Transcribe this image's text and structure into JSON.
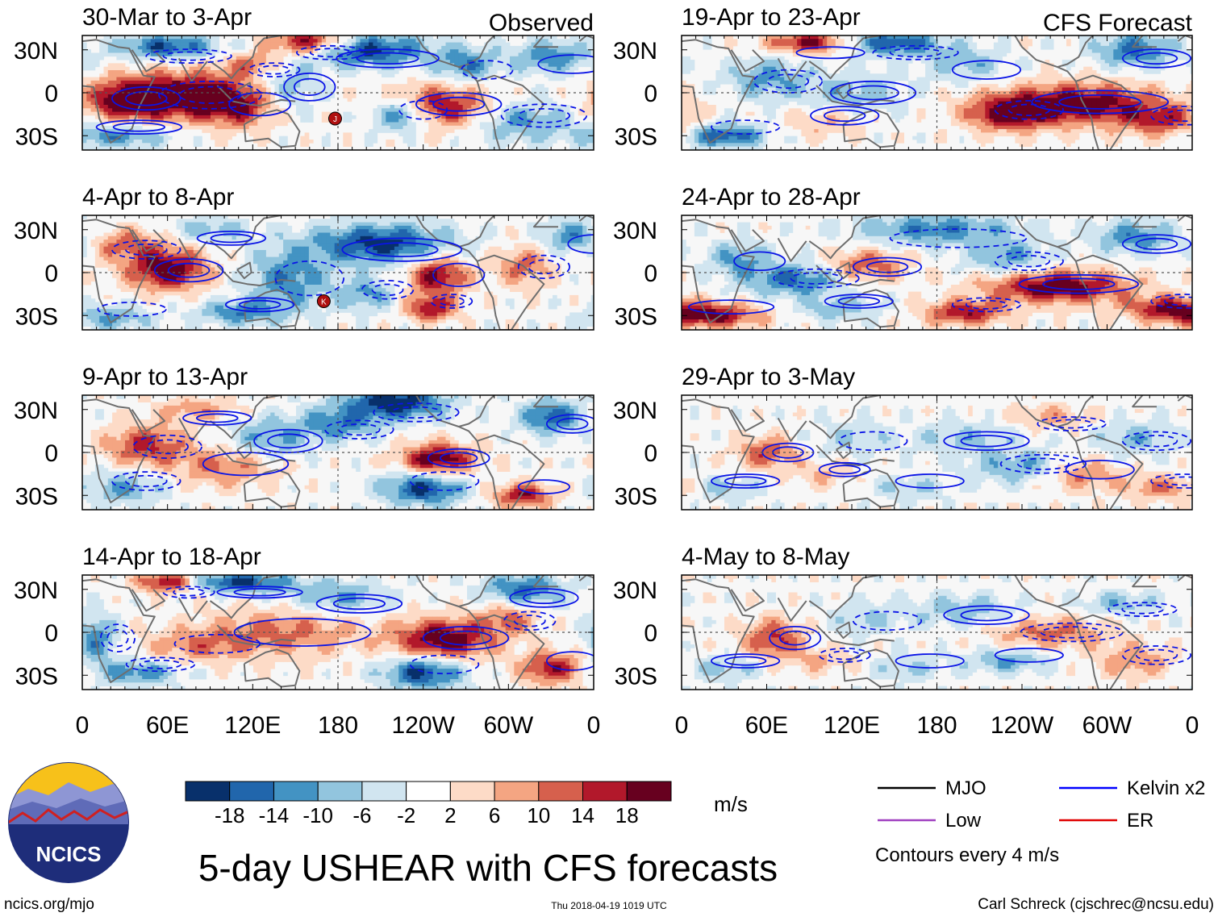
{
  "chart_data": {
    "type": "heatmap",
    "title": "5-day USHEAR with CFS forecasts",
    "variable": "USHEAR",
    "units": "m/s",
    "observed_label": "Observed",
    "forecast_label": "CFS Forecast",
    "x_ticks": [
      "0",
      "60E",
      "120E",
      "180",
      "120W",
      "60W",
      "0"
    ],
    "x_tick_values": [
      0,
      60,
      120,
      180,
      240,
      300,
      360
    ],
    "xlim": [
      0,
      360
    ],
    "y_ticks": [
      "30N",
      "0",
      "30S"
    ],
    "y_tick_values": [
      30,
      0,
      -30
    ],
    "ylim": [
      -40,
      40
    ],
    "colorbar": {
      "labels": [
        "-18",
        "-14",
        "-10",
        "-6",
        "-2",
        "2",
        "6",
        "10",
        "14",
        "18"
      ],
      "levels": [
        -18,
        -14,
        -10,
        -6,
        -2,
        2,
        6,
        10,
        14,
        18
      ],
      "colors": [
        "#08306b",
        "#2166ac",
        "#4393c3",
        "#92c5de",
        "#d1e5f0",
        "#ffffff",
        "#fddbc7",
        "#f4a582",
        "#d6604d",
        "#b2182b",
        "#67001f"
      ]
    },
    "legend": [
      {
        "label": "MJO",
        "color": "#000000"
      },
      {
        "label": "Kelvin x2",
        "color": "#0000ff"
      },
      {
        "label": "Low",
        "color": "#a040c0"
      },
      {
        "label": "ER",
        "color": "#e00000"
      }
    ],
    "contour_note": "Contours every 4 m/s",
    "panels": [
      {
        "period": "30-Mar to 3-Apr",
        "kind": "observed",
        "storms": [
          {
            "label": "J",
            "lon": 178,
            "lat": -18
          }
        ],
        "anomalies": [
          [
            30,
            -5,
            20,
            10,
            0.9
          ],
          [
            75,
            -2,
            30,
            12,
            1.0
          ],
          [
            110,
            -10,
            18,
            10,
            0.6
          ],
          [
            160,
            35,
            20,
            6,
            1.0
          ],
          [
            250,
            -10,
            25,
            10,
            0.9
          ],
          [
            225,
            -15,
            14,
            8,
            -0.9
          ],
          [
            200,
            30,
            30,
            8,
            -0.9
          ],
          [
            60,
            32,
            25,
            6,
            -0.8
          ],
          [
            330,
            25,
            20,
            8,
            -0.6
          ],
          [
            310,
            -20,
            25,
            10,
            -0.5
          ],
          [
            145,
            5,
            15,
            12,
            -0.4
          ],
          [
            270,
            20,
            15,
            8,
            -0.6
          ],
          [
            25,
            -30,
            25,
            6,
            -0.6
          ],
          [
            120,
            20,
            15,
            6,
            0.5
          ]
        ]
      },
      {
        "period": "4-Apr to 8-Apr",
        "kind": "observed",
        "storms": [
          {
            "label": "K",
            "lon": 170,
            "lat": -20
          }
        ],
        "anomalies": [
          [
            60,
            2,
            20,
            10,
            1.0
          ],
          [
            30,
            20,
            20,
            8,
            0.5
          ],
          [
            250,
            -2,
            15,
            10,
            0.9
          ],
          [
            245,
            -25,
            12,
            6,
            0.8
          ],
          [
            210,
            20,
            35,
            10,
            -0.9
          ],
          [
            145,
            -5,
            20,
            15,
            -0.6
          ],
          [
            110,
            -28,
            20,
            6,
            -0.6
          ],
          [
            310,
            5,
            15,
            10,
            0.5
          ],
          [
            345,
            25,
            15,
            8,
            -0.6
          ],
          [
            200,
            -15,
            15,
            8,
            -0.5
          ],
          [
            90,
            30,
            20,
            6,
            -0.4
          ],
          [
            20,
            -32,
            20,
            6,
            -0.5
          ]
        ]
      },
      {
        "period": "9-Apr to 13-Apr",
        "kind": "observed",
        "storms": [],
        "anomalies": [
          [
            250,
            -5,
            18,
            8,
            1.0
          ],
          [
            45,
            5,
            20,
            10,
            0.7
          ],
          [
            100,
            -10,
            25,
            10,
            0.5
          ],
          [
            220,
            35,
            25,
            8,
            -1.0
          ],
          [
            330,
            25,
            15,
            8,
            -0.8
          ],
          [
            240,
            -25,
            20,
            8,
            -0.9
          ],
          [
            130,
            10,
            20,
            10,
            -0.5
          ],
          [
            30,
            -25,
            20,
            8,
            -0.5
          ],
          [
            310,
            -30,
            15,
            6,
            0.8
          ],
          [
            180,
            20,
            20,
            8,
            -0.6
          ],
          [
            80,
            30,
            20,
            6,
            0.4
          ]
        ]
      },
      {
        "period": "14-Apr to 18-Apr",
        "kind": "observed",
        "storms": [],
        "anomalies": [
          [
            255,
            -5,
            25,
            10,
            1.0
          ],
          [
            300,
            10,
            15,
            8,
            0.5
          ],
          [
            140,
            0,
            40,
            12,
            0.5
          ],
          [
            60,
            35,
            15,
            5,
            0.9
          ],
          [
            110,
            35,
            25,
            5,
            -0.9
          ],
          [
            240,
            -28,
            20,
            8,
            -0.9
          ],
          [
            310,
            30,
            20,
            8,
            -0.7
          ],
          [
            10,
            -5,
            10,
            12,
            -0.6
          ],
          [
            330,
            -25,
            15,
            8,
            0.8
          ],
          [
            40,
            -28,
            20,
            6,
            -0.6
          ],
          [
            180,
            25,
            25,
            8,
            -0.5
          ],
          [
            80,
            -10,
            25,
            8,
            0.4
          ]
        ]
      },
      {
        "period": "19-Apr to 23-Apr",
        "kind": "forecast",
        "storms": [],
        "anomalies": [
          [
            280,
            -8,
            40,
            10,
            1.0
          ],
          [
            230,
            -15,
            20,
            8,
            0.8
          ],
          [
            90,
            35,
            20,
            5,
            0.9
          ],
          [
            150,
            35,
            25,
            6,
            -0.8
          ],
          [
            320,
            30,
            20,
            8,
            -0.7
          ],
          [
            30,
            -30,
            20,
            6,
            -0.8
          ],
          [
            120,
            0,
            25,
            10,
            -0.4
          ],
          [
            60,
            10,
            20,
            10,
            -0.5
          ],
          [
            200,
            20,
            20,
            8,
            -0.4
          ],
          [
            340,
            -20,
            20,
            8,
            0.6
          ],
          [
            100,
            -20,
            20,
            8,
            0.3
          ]
        ]
      },
      {
        "period": "24-Apr to 28-Apr",
        "kind": "forecast",
        "storms": [],
        "anomalies": [
          [
            265,
            -10,
            35,
            8,
            1.0
          ],
          [
            80,
            -5,
            25,
            8,
            -0.7
          ],
          [
            20,
            -30,
            25,
            6,
            0.9
          ],
          [
            200,
            -28,
            20,
            6,
            0.8
          ],
          [
            130,
            5,
            20,
            8,
            0.6
          ],
          [
            180,
            30,
            40,
            8,
            -0.6
          ],
          [
            320,
            25,
            20,
            8,
            -0.6
          ],
          [
            230,
            10,
            20,
            8,
            -0.5
          ],
          [
            40,
            10,
            15,
            8,
            -0.5
          ],
          [
            340,
            -25,
            20,
            6,
            0.7
          ],
          [
            110,
            -25,
            20,
            6,
            -0.4
          ]
        ]
      },
      {
        "period": "29-Apr to 3-May",
        "kind": "forecast",
        "storms": [],
        "anomalies": [
          [
            60,
            0,
            15,
            8,
            0.6
          ],
          [
            240,
            -10,
            25,
            8,
            -0.5
          ],
          [
            280,
            -15,
            20,
            8,
            0.5
          ],
          [
            320,
            10,
            20,
            8,
            -0.4
          ],
          [
            200,
            10,
            25,
            8,
            -0.35
          ],
          [
            120,
            10,
            20,
            8,
            -0.3
          ],
          [
            30,
            -25,
            20,
            6,
            -0.35
          ],
          [
            340,
            -25,
            20,
            6,
            0.5
          ],
          [
            160,
            -25,
            20,
            6,
            -0.3
          ],
          [
            260,
            25,
            20,
            6,
            0.35
          ],
          [
            100,
            -15,
            15,
            6,
            0.3
          ]
        ]
      },
      {
        "period": "4-May to 8-May",
        "kind": "forecast",
        "storms": [],
        "anomalies": [
          [
            65,
            -5,
            15,
            10,
            0.7
          ],
          [
            260,
            0,
            30,
            8,
            0.5
          ],
          [
            230,
            -20,
            20,
            6,
            -0.5
          ],
          [
            320,
            -20,
            20,
            8,
            0.45
          ],
          [
            200,
            15,
            25,
            8,
            -0.4
          ],
          [
            130,
            10,
            20,
            8,
            -0.3
          ],
          [
            30,
            -25,
            20,
            6,
            -0.35
          ],
          [
            310,
            20,
            20,
            6,
            -0.4
          ],
          [
            160,
            -25,
            20,
            6,
            -0.3
          ],
          [
            100,
            -20,
            15,
            6,
            0.3
          ]
        ]
      }
    ]
  },
  "footer": {
    "logo_text": "NCICS",
    "site": "ncics.org/mjo",
    "timestamp": "Thu 2018-04-19 1019 UTC",
    "author": "Carl Schreck (cjschrec@ncsu.edu)"
  }
}
